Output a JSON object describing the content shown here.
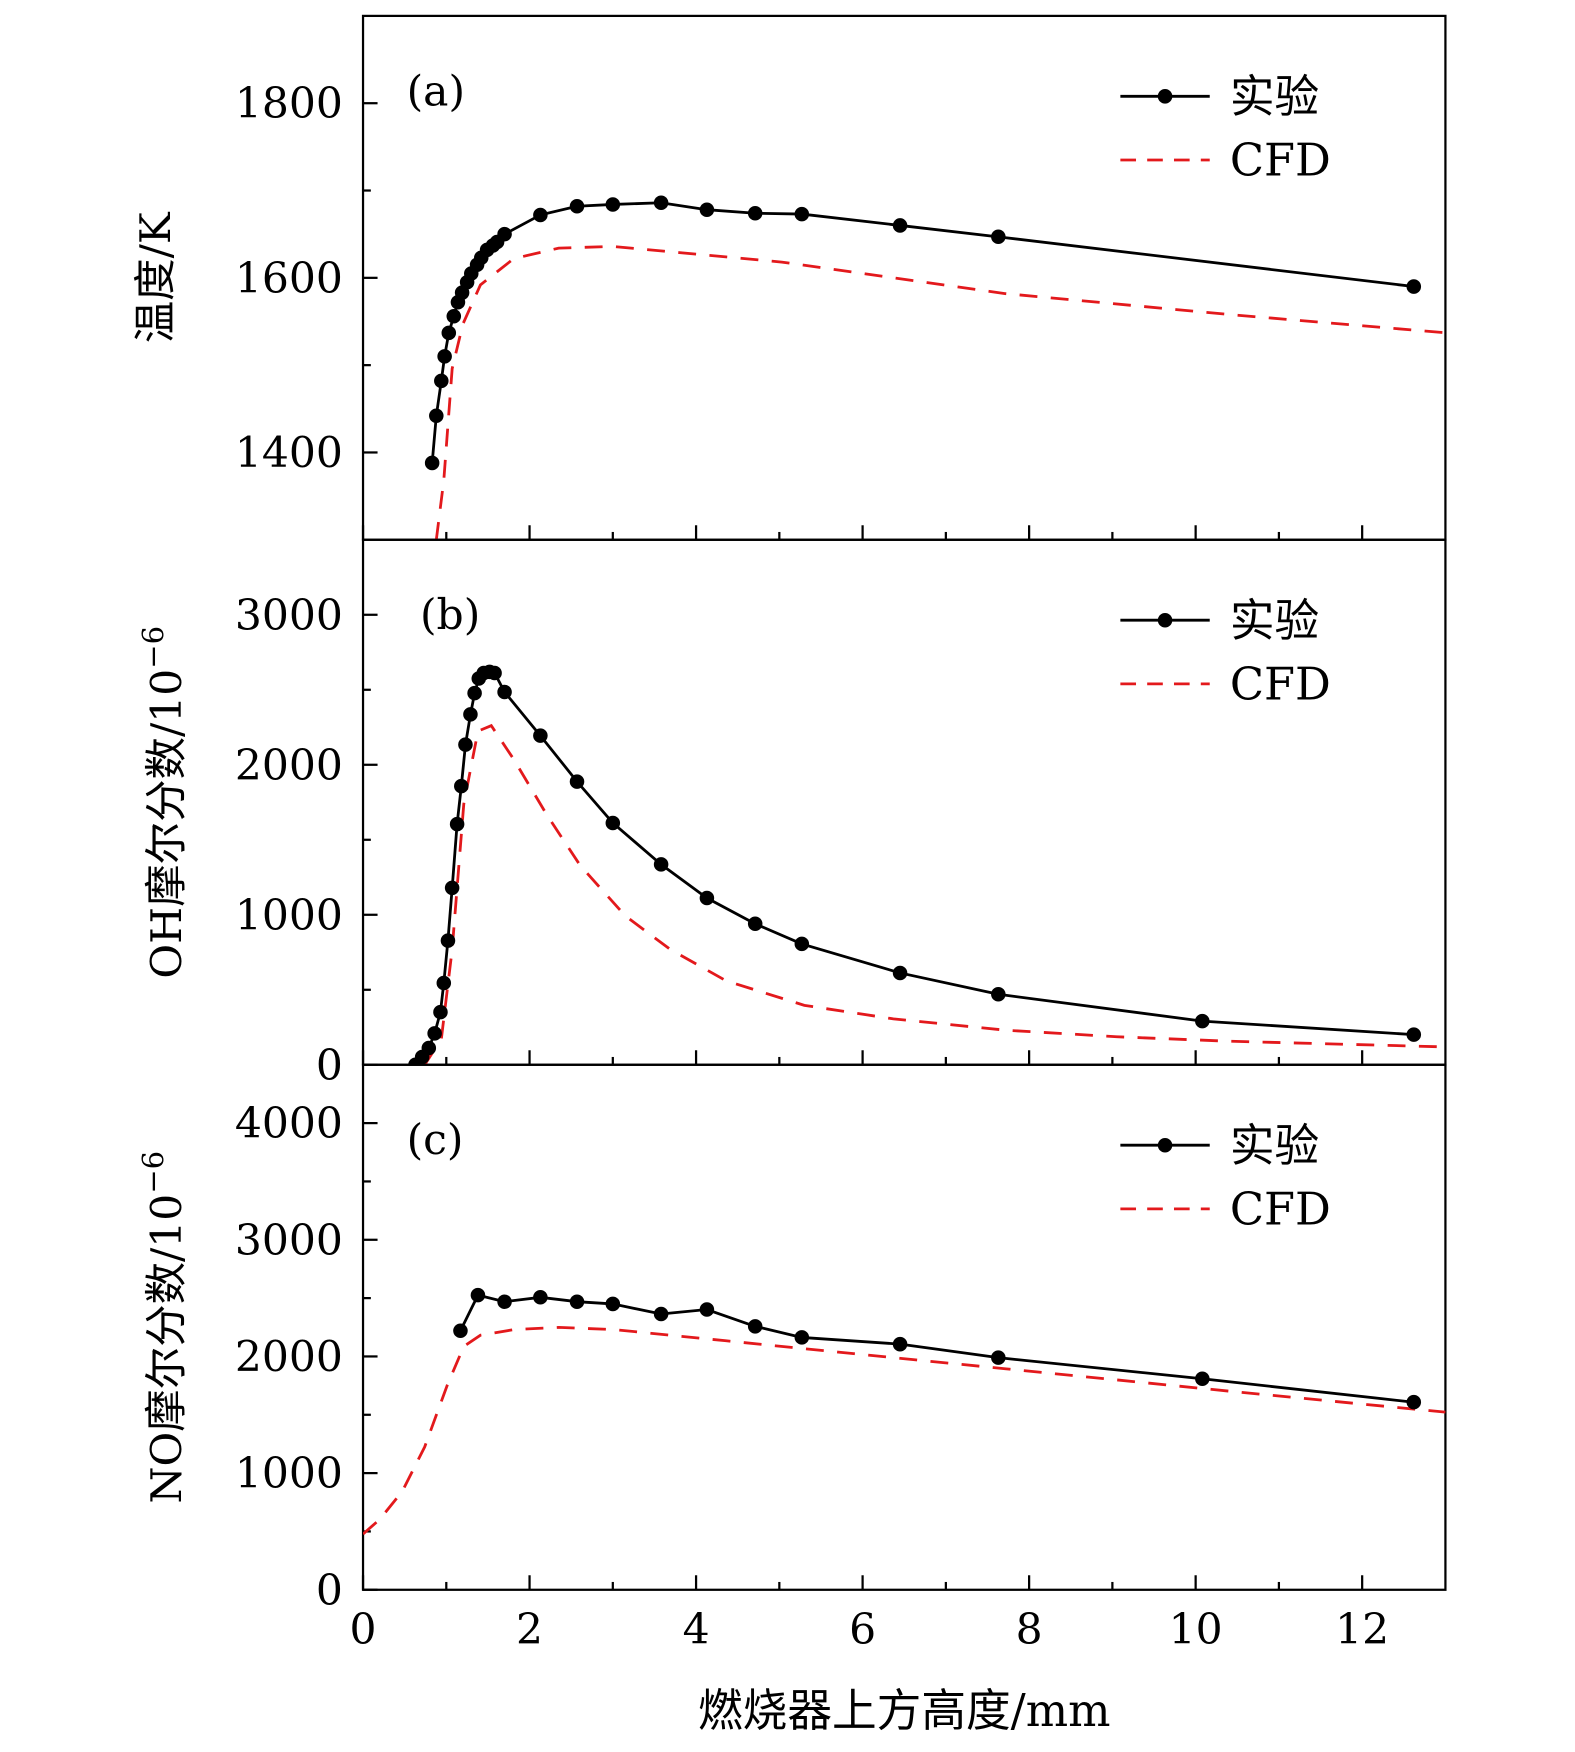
{
  "chart_data": [
    {
      "type": "line",
      "panel_label": "(a)",
      "ylabel": "温度/K",
      "xlim": [
        0,
        13
      ],
      "ylim": [
        1300,
        1900
      ],
      "yticks": [
        1400,
        1600,
        1800
      ],
      "yminor": [
        1300,
        1500,
        1700,
        1900
      ],
      "grid": false,
      "legend_placement": "top-right",
      "series": [
        {
          "name": "实验",
          "style": "solid-markers",
          "color": "#000000",
          "x": [
            0.83,
            0.88,
            0.94,
            0.98,
            1.03,
            1.09,
            1.14,
            1.19,
            1.25,
            1.3,
            1.37,
            1.42,
            1.49,
            1.56,
            1.61,
            1.7,
            2.13,
            2.57,
            3.0,
            3.58,
            4.13,
            4.71,
            5.27,
            6.45,
            7.63,
            12.62
          ],
          "y": [
            1388,
            1442,
            1482,
            1510,
            1537,
            1556,
            1572,
            1583,
            1595,
            1605,
            1615,
            1623,
            1632,
            1637,
            1641,
            1650,
            1672,
            1682,
            1684,
            1686,
            1678,
            1674,
            1673,
            1660,
            1647,
            1590
          ]
        },
        {
          "name": "CFD",
          "style": "dashed",
          "color": "#e3191c",
          "x": [
            0.88,
            0.97,
            1.07,
            1.2,
            1.41,
            1.81,
            2.35,
            3.0,
            5.03,
            7.71,
            10.4,
            13
          ],
          "y": [
            1300,
            1368,
            1496,
            1547,
            1592,
            1622,
            1634,
            1636,
            1618,
            1582,
            1558,
            1537
          ]
        }
      ]
    },
    {
      "type": "line",
      "panel_label": "(b)",
      "ylabel": "OH摩尔分数/10",
      "ylabel_exp": "−6",
      "xlim": [
        0,
        13
      ],
      "ylim": [
        0,
        3500
      ],
      "yticks": [
        0,
        1000,
        2000,
        3000
      ],
      "yminor": [
        500,
        1500,
        2500,
        3500
      ],
      "grid": false,
      "legend_placement": "top-right",
      "series": [
        {
          "name": "实验",
          "style": "solid-markers",
          "color": "#000000",
          "x": [
            0.63,
            0.71,
            0.79,
            0.86,
            0.93,
            0.97,
            1.02,
            1.07,
            1.13,
            1.18,
            1.23,
            1.29,
            1.34,
            1.39,
            1.45,
            1.52,
            1.58,
            1.7,
            2.13,
            2.57,
            3.0,
            3.58,
            4.13,
            4.71,
            5.27,
            6.45,
            7.63,
            10.08,
            12.62
          ],
          "y": [
            0,
            52,
            112,
            209,
            351,
            545,
            828,
            1179,
            1604,
            1858,
            2134,
            2336,
            2478,
            2575,
            2612,
            2619,
            2612,
            2485,
            2194,
            1888,
            1612,
            1336,
            1112,
            940,
            806,
            612,
            470,
            291,
            201
          ]
        },
        {
          "name": "CFD",
          "style": "dashed",
          "color": "#e3191c",
          "x": [
            0.74,
            0.94,
            1.07,
            1.21,
            1.38,
            1.54,
            1.81,
            2.21,
            2.61,
            3.15,
            3.69,
            4.36,
            5.3,
            6.37,
            7.71,
            9.05,
            10.39,
            13
          ],
          "y": [
            0,
            172,
            769,
            1739,
            2224,
            2261,
            2037,
            1664,
            1328,
            993,
            769,
            560,
            396,
            306,
            231,
            187,
            157,
            119
          ]
        }
      ]
    },
    {
      "type": "line",
      "panel_label": "(c)",
      "ylabel": "NO摩尔分数/10",
      "ylabel_exp": "−6",
      "xlabel": "燃烧器上方高度/mm",
      "xlim": [
        0,
        13
      ],
      "ylim": [
        0,
        4500
      ],
      "xticks": [
        0,
        2,
        4,
        6,
        8,
        10,
        12
      ],
      "xminor": [
        1,
        3,
        5,
        7,
        9,
        11,
        13
      ],
      "yticks": [
        0,
        1000,
        2000,
        3000,
        4000
      ],
      "yminor": [
        500,
        1500,
        2500,
        3500,
        4500
      ],
      "grid": false,
      "legend_placement": "top-right",
      "series": [
        {
          "name": "实验",
          "style": "solid-markers",
          "color": "#000000",
          "x": [
            1.17,
            1.38,
            1.7,
            2.13,
            2.57,
            3.0,
            3.58,
            4.13,
            4.71,
            5.27,
            6.45,
            7.63,
            10.08,
            12.62
          ],
          "y": [
            2220,
            2526,
            2469,
            2507,
            2469,
            2450,
            2364,
            2402,
            2258,
            2163,
            2105,
            1990,
            1809,
            1608
          ]
        },
        {
          "name": "CFD",
          "style": "dashed",
          "color": "#e3191c",
          "x": [
            0,
            0.2,
            0.47,
            0.74,
            1.01,
            1.21,
            1.41,
            1.81,
            2.35,
            3.02,
            4.36,
            6.37,
            7.71,
            10.39,
            13
          ],
          "y": [
            478,
            603,
            842,
            1225,
            1751,
            2086,
            2182,
            2230,
            2249,
            2230,
            2134,
            1990,
            1895,
            1703,
            1522
          ]
        }
      ]
    }
  ]
}
